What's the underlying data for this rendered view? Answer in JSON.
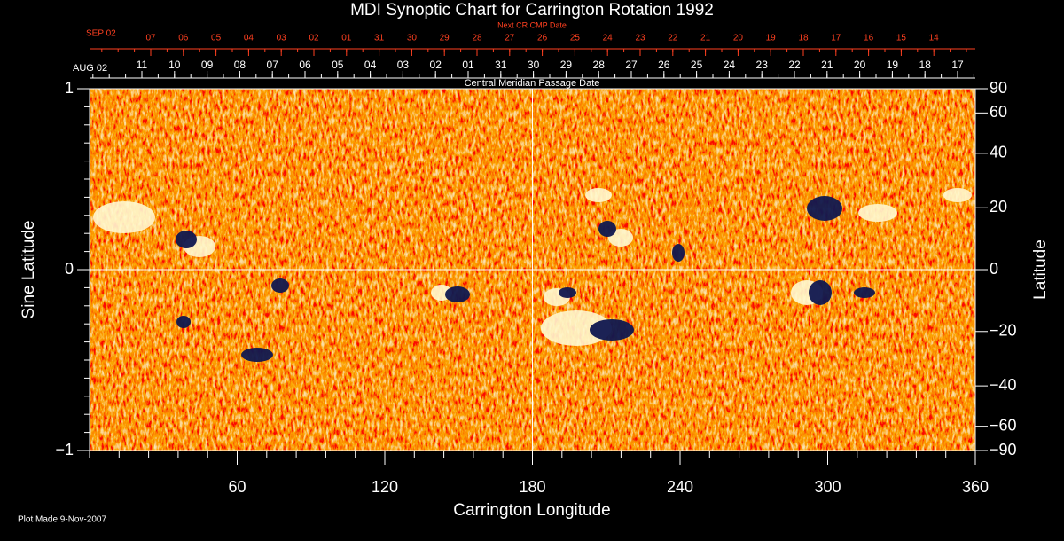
{
  "chart_data": {
    "type": "synoptic-map",
    "title": "MDI Synoptic Chart for Carrington Rotation 1992",
    "x_label": "Carrington Longitude",
    "y_label": "Sine Latitude",
    "y2_label": "Latitude",
    "xlim": [
      0,
      360
    ],
    "xticks": [
      60,
      120,
      180,
      240,
      300,
      360
    ],
    "ylim": [
      -1,
      1
    ],
    "yticks": [
      {
        "value": -1,
        "label": "−1"
      },
      0,
      1
    ],
    "y2lim": [
      -90,
      90
    ],
    "y2scale": "sine",
    "y2ticks": [
      90,
      60,
      40,
      20,
      0,
      {
        "value": -20,
        "label": "−20"
      },
      {
        "value": -40,
        "label": "−40"
      },
      {
        "value": -60,
        "label": "−60"
      },
      {
        "value": -90,
        "label": "−90"
      }
    ],
    "crosshair": true,
    "top_axis": {
      "label": "Central Meridian Passage Date",
      "start_label": "AUG 02",
      "dates": [
        "11",
        "10",
        "09",
        "08",
        "07",
        "06",
        "05",
        "04",
        "03",
        "02",
        "01",
        "31",
        "30",
        "29",
        "28",
        "27",
        "26",
        "25",
        "24",
        "23",
        "22",
        "21",
        "20",
        "19",
        "18",
        "17"
      ]
    },
    "top_axis2": {
      "label": "Next CR CMP Date",
      "start_label": "SEP 02",
      "dates": [
        "07",
        "06",
        "05",
        "04",
        "03",
        "02",
        "01",
        "31",
        "30",
        "29",
        "28",
        "27",
        "26",
        "25",
        "24",
        "23",
        "22",
        "21",
        "20",
        "19",
        "18",
        "17",
        "16",
        "15",
        "14"
      ]
    },
    "footer": "Plot Made  9-Nov-2007"
  }
}
